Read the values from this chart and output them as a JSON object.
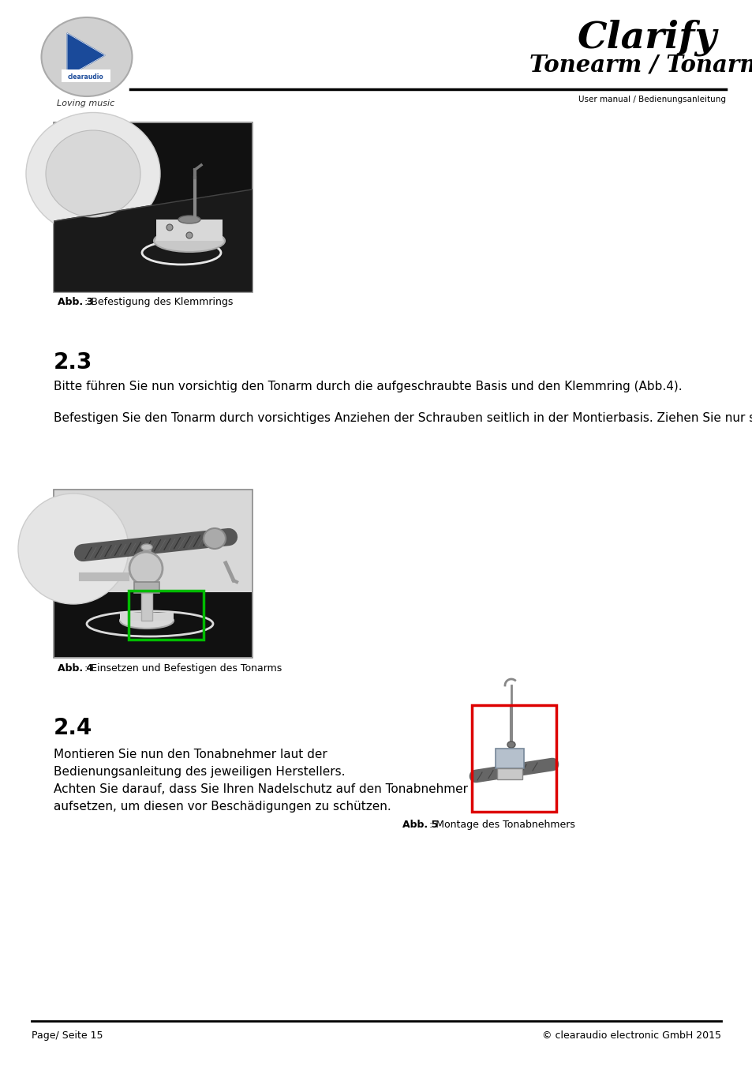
{
  "page_bg": "#ffffff",
  "header_title": "Clarify",
  "header_subtitle": "Tonearm / Tonarm",
  "header_manual": "User manual / Bedienungsanleitung",
  "header_loving": "Loving music",
  "section_2_3_title": "2.3",
  "section_2_3_text1": "Bitte führen Sie nun vorsichtig den Tonarm durch die aufgeschraubte Basis und den Klemmring (Abb.4).",
  "section_2_3_text2": "Befestigen Sie den Tonarm durch vorsichtiges Anziehen der Schrauben seitlich in der Montierbasis. Ziehen Sie nur so fest an, dass Sie die Schrauben zu weiteren Einstellungen wieder leicht lösen können.",
  "abb3_caption_bold": "Abb. 3",
  "abb3_caption_rest": ": Befestigung des Klemmrings",
  "abb4_caption_bold": "Abb. 4",
  "abb4_caption_rest": ": Einsetzen und Befestigen des Tonarms",
  "abb5_caption_bold": "Abb. 5",
  "abb5_caption_rest": ": Montage des Tonabnehmers",
  "section_2_4_title": "2.4",
  "section_2_4_text_line1": "Montieren Sie nun den Tonabnehmer laut der",
  "section_2_4_text_line2": "Bedienungsanleitung des jeweiligen Herstellers.",
  "section_2_4_text_line3": "Achten Sie darauf, dass Sie Ihren Nadelschutz auf den Tonabnehmer",
  "section_2_4_text_line4": "aufsetzen, um diesen vor Beschädigungen zu schützen.",
  "footer_left": "Page/ Seite 15",
  "footer_right": "© clearaudio electronic GmbH 2015"
}
